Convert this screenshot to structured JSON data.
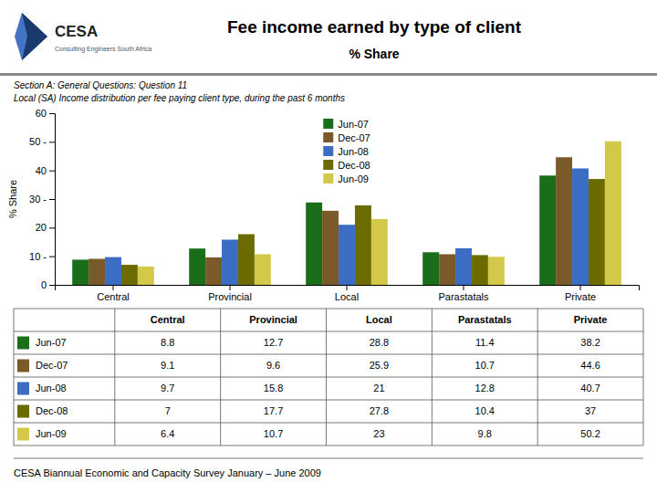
{
  "chart_data": {
    "type": "bar",
    "title": "Fee income earned by type of client",
    "subtitle": "% Share",
    "annotations": [
      "CESA",
      "Consulting Engineers South Africa",
      "Section A: General Questions: Question 11",
      "Local (SA) Income distribution per fee paying client type, during the past 6 months",
      "CESA Biannual Economic and Capacity Survey January – June 2009"
    ],
    "categories": [
      "Central",
      "Provincial",
      "Local",
      "Parastatals",
      "Private"
    ],
    "series": [
      {
        "name": "Jun-07",
        "color": "#1a6e1a",
        "values": [
          8.8,
          12.7,
          28.8,
          11.4,
          38.2
        ]
      },
      {
        "name": "Dec-07",
        "color": "#7b5a2a",
        "values": [
          9.1,
          9.6,
          25.9,
          10.7,
          44.6
        ]
      },
      {
        "name": "Jun-08",
        "color": "#3b6dc5",
        "values": [
          9.7,
          15.8,
          21.0,
          12.8,
          40.7
        ]
      },
      {
        "name": "Dec-08",
        "color": "#6b6b00",
        "values": [
          7.0,
          17.7,
          27.8,
          10.4,
          37.0
        ]
      },
      {
        "name": "Jun-09",
        "color": "#d4c84a",
        "values": [
          6.4,
          10.7,
          23.0,
          9.8,
          50.2
        ]
      }
    ],
    "ylabel": "% Share",
    "ylim": [
      0,
      60
    ],
    "yticks": [
      0,
      {
        "value": 10,
        "label": "10 -"
      },
      20,
      {
        "value": 30,
        "label": "30 -"
      },
      40,
      {
        "value": 50,
        "label": "50 -"
      },
      60
    ],
    "grid": false,
    "legend": "upper center"
  }
}
